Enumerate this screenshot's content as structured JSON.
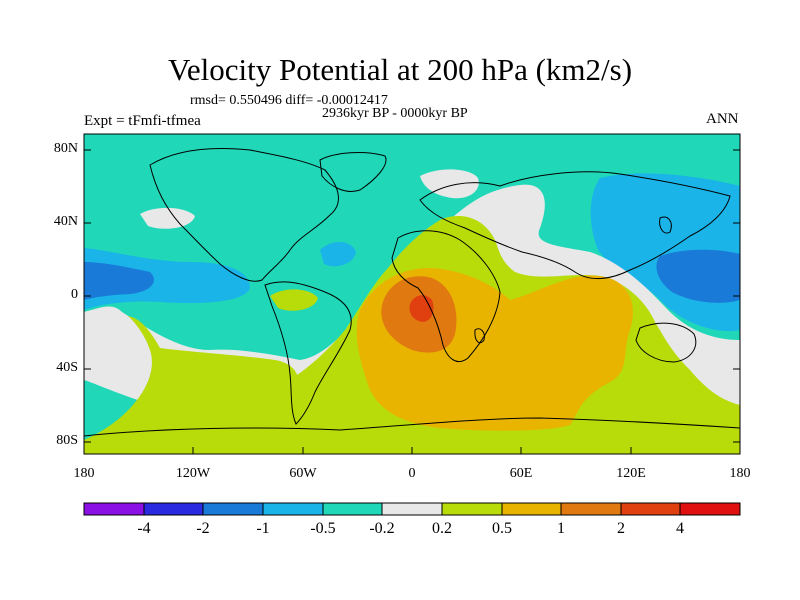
{
  "title": "Velocity Potential at 200 hPa (km2/s)",
  "stats_line": "rmsd= 0.550496 diff= -0.00012417",
  "period_line": "2936kyr BP - 0000kyr BP",
  "experiment_label": "Expt = tFmfi-tfmea",
  "season_label": "ANN",
  "latitude_labels": [
    "80N",
    "40N",
    "0",
    "40S",
    "80S"
  ],
  "longitude_labels": [
    "180",
    "120W",
    "60W",
    "0",
    "60E",
    "120E",
    "180"
  ],
  "colorbar": {
    "labels": [
      "-4",
      "-2",
      "-1",
      "-0.5",
      "-0.2",
      "0.2",
      "0.5",
      "1",
      "2",
      "4"
    ],
    "colors": [
      "#8a10e6",
      "#2a2ae0",
      "#1a7ad8",
      "#1ab4e8",
      "#20d8b8",
      "#e8e8e8",
      "#b8dc0a",
      "#e8b400",
      "#e07a10",
      "#e04010",
      "#e01010"
    ]
  },
  "colors": {
    "land_outline": "#000000",
    "background_field": "#20d8b8"
  }
}
